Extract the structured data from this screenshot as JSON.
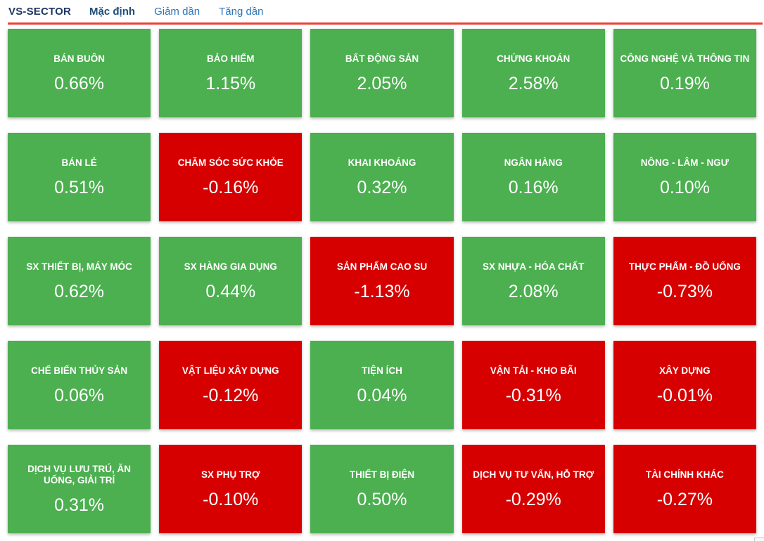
{
  "header": {
    "title": "VS-SECTOR",
    "tabs": [
      {
        "label": "Mặc định",
        "active": true
      },
      {
        "label": "Giảm dần",
        "active": false
      },
      {
        "label": "Tăng dần",
        "active": false
      }
    ]
  },
  "colors": {
    "up": "#4caf50",
    "down": "#d60000",
    "divider": "#ee3e36",
    "title": "#1f3864",
    "tab_active": "#1f4e79",
    "tab_link": "#2e75b6"
  },
  "sectors": [
    {
      "name": "BÁN BUÔN",
      "change": "0.66%",
      "direction": "up"
    },
    {
      "name": "BẢO HIỂM",
      "change": "1.15%",
      "direction": "up"
    },
    {
      "name": "BẤT ĐỘNG SẢN",
      "change": "2.05%",
      "direction": "up"
    },
    {
      "name": "CHỨNG KHOÁN",
      "change": "2.58%",
      "direction": "up"
    },
    {
      "name": "CÔNG NGHỆ VÀ THÔNG TIN",
      "change": "0.19%",
      "direction": "up"
    },
    {
      "name": "BÁN LẺ",
      "change": "0.51%",
      "direction": "up"
    },
    {
      "name": "CHĂM SÓC SỨC KHỎE",
      "change": "-0.16%",
      "direction": "down"
    },
    {
      "name": "KHAI KHOÁNG",
      "change": "0.32%",
      "direction": "up"
    },
    {
      "name": "NGÂN HÀNG",
      "change": "0.16%",
      "direction": "up"
    },
    {
      "name": "NÔNG - LÂM - NGƯ",
      "change": "0.10%",
      "direction": "up"
    },
    {
      "name": "SX THIẾT BỊ, MÁY MÓC",
      "change": "0.62%",
      "direction": "up"
    },
    {
      "name": "SX HÀNG GIA DỤNG",
      "change": "0.44%",
      "direction": "up"
    },
    {
      "name": "SẢN PHẨM CAO SU",
      "change": "-1.13%",
      "direction": "down"
    },
    {
      "name": "SX NHỰA - HÓA CHẤT",
      "change": "2.08%",
      "direction": "up"
    },
    {
      "name": "THỰC PHẨM - ĐỒ UỐNG",
      "change": "-0.73%",
      "direction": "down"
    },
    {
      "name": "CHẾ BIẾN THỦY SẢN",
      "change": "0.06%",
      "direction": "up"
    },
    {
      "name": "VẬT LIỆU XÂY DỰNG",
      "change": "-0.12%",
      "direction": "down"
    },
    {
      "name": "TIỆN ÍCH",
      "change": "0.04%",
      "direction": "up"
    },
    {
      "name": "VẬN TẢI - KHO BÃI",
      "change": "-0.31%",
      "direction": "down"
    },
    {
      "name": "XÂY DỰNG",
      "change": "-0.01%",
      "direction": "down"
    },
    {
      "name": "DỊCH VỤ LƯU TRÚ, ĂN UỐNG, GIẢI TRÍ",
      "change": "0.31%",
      "direction": "up"
    },
    {
      "name": "SX PHỤ TRỢ",
      "change": "-0.10%",
      "direction": "down"
    },
    {
      "name": "THIẾT BỊ ĐIỆN",
      "change": "0.50%",
      "direction": "up"
    },
    {
      "name": "DỊCH VỤ TƯ VẤN, HỖ TRỢ",
      "change": "-0.29%",
      "direction": "down"
    },
    {
      "name": "TÀI CHÍNH KHÁC",
      "change": "-0.27%",
      "direction": "down"
    }
  ],
  "chart_data": {
    "type": "heatmap",
    "title": "VS-SECTOR",
    "unit": "%",
    "layout": "5x5 tile grid, row-major; green = positive change, red = negative change",
    "categories": [
      "BÁN BUÔN",
      "BẢO HIỂM",
      "BẤT ĐỘNG SẢN",
      "CHỨNG KHOÁN",
      "CÔNG NGHỆ VÀ THÔNG TIN",
      "BÁN LẺ",
      "CHĂM SÓC SỨC KHỎE",
      "KHAI KHOÁNG",
      "NGÂN HÀNG",
      "NÔNG - LÂM - NGƯ",
      "SX THIẾT BỊ, MÁY MÓC",
      "SX HÀNG GIA DỤNG",
      "SẢN PHẨM CAO SU",
      "SX NHỰA - HÓA CHẤT",
      "THỰC PHẨM - ĐỒ UỐNG",
      "CHẾ BIẾN THỦY SẢN",
      "VẬT LIỆU XÂY DỰNG",
      "TIỆN ÍCH",
      "VẬN TẢI - KHO BÃI",
      "XÂY DỰNG",
      "DỊCH VỤ LƯU TRÚ, ĂN UỐNG, GIẢI TRÍ",
      "SX PHỤ TRỢ",
      "THIẾT BỊ ĐIỆN",
      "DỊCH VỤ TƯ VẤN, HỖ TRỢ",
      "TÀI CHÍNH KHÁC"
    ],
    "values": [
      0.66,
      1.15,
      2.05,
      2.58,
      0.19,
      0.51,
      -0.16,
      0.32,
      0.16,
      0.1,
      0.62,
      0.44,
      -1.13,
      2.08,
      -0.73,
      0.06,
      -0.12,
      0.04,
      -0.31,
      -0.01,
      0.31,
      -0.1,
      0.5,
      -0.29,
      -0.27
    ]
  }
}
